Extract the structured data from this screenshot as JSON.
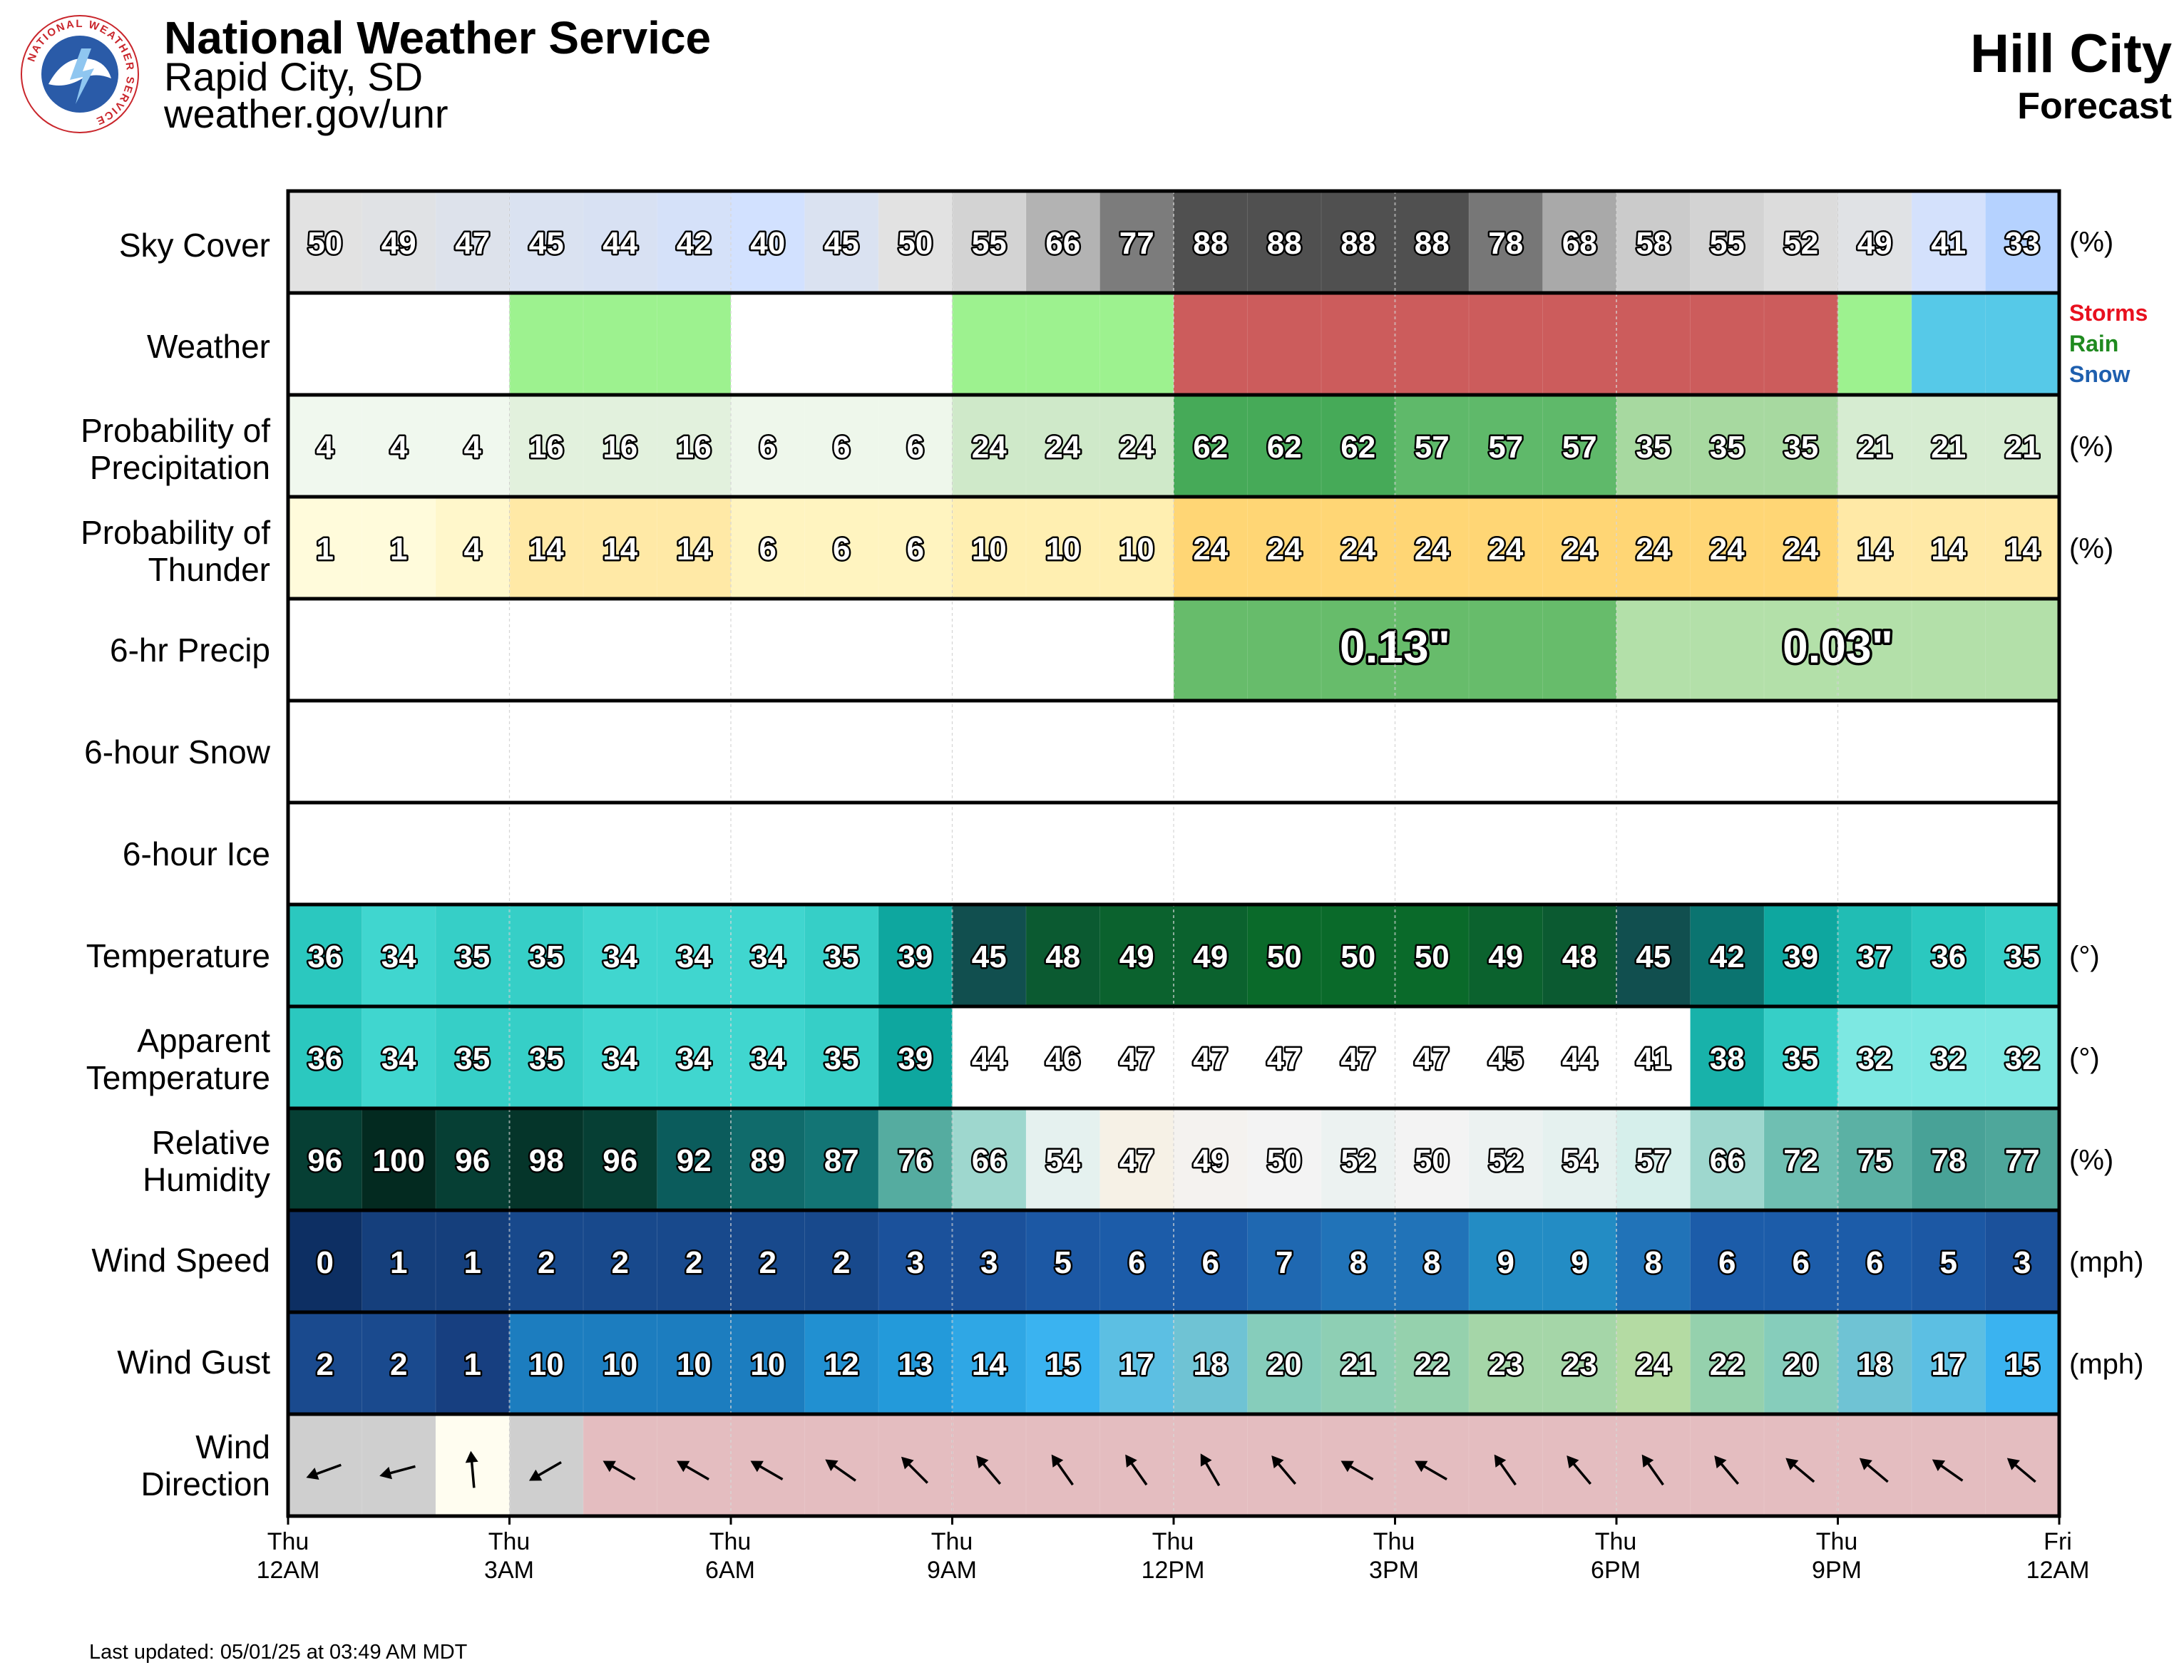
{
  "header": {
    "office": "National Weather Service",
    "city": "Rapid City, SD",
    "url": "weather.gov/unr",
    "location": "Hill City",
    "subtitle": "Forecast",
    "logo_text": "NATIONAL WEATHER SERVICE"
  },
  "footer": {
    "updated": "Last updated: 05/01/25 at 03:49 AM MDT"
  },
  "units": {
    "percent": "(%)",
    "degrees": "(°)",
    "mph": "(mph)"
  },
  "weather_legend": [
    {
      "label": "Storms",
      "color": "#e8101e"
    },
    {
      "label": "Rain",
      "color": "#1f8a1f"
    },
    {
      "label": "Snow",
      "color": "#1e5fae"
    }
  ],
  "x_ticks": [
    {
      "day": "Thu",
      "time": "12AM"
    },
    {
      "day": "Thu",
      "time": "3AM"
    },
    {
      "day": "Thu",
      "time": "6AM"
    },
    {
      "day": "Thu",
      "time": "9AM"
    },
    {
      "day": "Thu",
      "time": "12PM"
    },
    {
      "day": "Thu",
      "time": "3PM"
    },
    {
      "day": "Thu",
      "time": "6PM"
    },
    {
      "day": "Thu",
      "time": "9PM"
    },
    {
      "day": "Fri",
      "time": "12AM"
    }
  ],
  "chart_data": {
    "type": "table",
    "hours": [
      "12AM",
      "1AM",
      "2AM",
      "3AM",
      "4AM",
      "5AM",
      "6AM",
      "7AM",
      "8AM",
      "9AM",
      "10AM",
      "11AM",
      "12PM",
      "1PM",
      "2PM",
      "3PM",
      "4PM",
      "5PM",
      "6PM",
      "7PM",
      "8PM",
      "9PM",
      "10PM",
      "11PM"
    ],
    "rows": {
      "sky_cover": {
        "label": "Sky Cover",
        "unit": "(%)",
        "values": [
          50,
          49,
          47,
          45,
          44,
          42,
          40,
          45,
          50,
          55,
          66,
          77,
          88,
          88,
          88,
          88,
          78,
          68,
          58,
          55,
          52,
          49,
          41,
          33
        ]
      },
      "weather": {
        "label": "Weather",
        "values": [
          "",
          "",
          "",
          "Rain",
          "Rain",
          "Rain",
          "",
          "",
          "",
          "Rain",
          "Rain",
          "Rain",
          "Storms",
          "Storms",
          "Storms",
          "Storms",
          "Storms",
          "Storms",
          "Storms",
          "Storms",
          "Storms",
          "Rain",
          "Snow",
          "Snow"
        ]
      },
      "pop": {
        "label": "Probability of Precipitation",
        "label_lines": [
          "Probability of",
          "Precipitation"
        ],
        "unit": "(%)",
        "values": [
          4,
          4,
          4,
          16,
          16,
          16,
          6,
          6,
          6,
          24,
          24,
          24,
          62,
          62,
          62,
          57,
          57,
          57,
          35,
          35,
          35,
          21,
          21,
          21
        ]
      },
      "thunder": {
        "label": "Probability of Thunder",
        "label_lines": [
          "Probability of",
          "Thunder"
        ],
        "unit": "(%)",
        "values": [
          1,
          1,
          4,
          14,
          14,
          14,
          6,
          6,
          6,
          10,
          10,
          10,
          24,
          24,
          24,
          24,
          24,
          24,
          24,
          24,
          24,
          14,
          14,
          14
        ]
      },
      "precip6": {
        "label": "6-hr Precip",
        "blocks": [
          {
            "start": 12,
            "end": 18,
            "value": "0.13\"",
            "amount": 0.13
          },
          {
            "start": 18,
            "end": 24,
            "value": "0.03\"",
            "amount": 0.03
          }
        ]
      },
      "snow6": {
        "label": "6-hour Snow",
        "blocks": []
      },
      "ice6": {
        "label": "6-hour Ice",
        "blocks": []
      },
      "temperature": {
        "label": "Temperature",
        "unit": "(°)",
        "values": [
          36,
          34,
          35,
          35,
          34,
          34,
          34,
          35,
          39,
          45,
          48,
          49,
          49,
          50,
          50,
          50,
          49,
          48,
          45,
          42,
          39,
          37,
          36,
          35
        ]
      },
      "apparent": {
        "label": "Apparent Temperature",
        "label_lines": [
          "Apparent",
          "Temperature"
        ],
        "unit": "(°)",
        "values": [
          36,
          34,
          35,
          35,
          34,
          34,
          34,
          35,
          39,
          44,
          46,
          47,
          47,
          47,
          47,
          47,
          45,
          44,
          41,
          38,
          35,
          32,
          32,
          32
        ]
      },
      "humidity": {
        "label": "Relative Humidity",
        "label_lines": [
          "Relative",
          "Humidity"
        ],
        "unit": "(%)",
        "values": [
          96,
          100,
          96,
          98,
          96,
          92,
          89,
          87,
          76,
          66,
          54,
          47,
          49,
          50,
          52,
          50,
          52,
          54,
          57,
          66,
          72,
          75,
          78,
          77
        ]
      },
      "wind_speed": {
        "label": "Wind Speed",
        "unit": "(mph)",
        "values": [
          0,
          1,
          1,
          2,
          2,
          2,
          2,
          2,
          3,
          3,
          5,
          6,
          6,
          7,
          8,
          8,
          9,
          9,
          8,
          6,
          6,
          6,
          5,
          3
        ]
      },
      "wind_gust": {
        "label": "Wind Gust",
        "unit": "(mph)",
        "values": [
          2,
          2,
          1,
          10,
          10,
          10,
          10,
          12,
          13,
          14,
          15,
          17,
          18,
          20,
          21,
          22,
          23,
          23,
          24,
          22,
          20,
          18,
          17,
          15
        ]
      },
      "wind_dir": {
        "label": "Wind Direction",
        "label_lines": [
          "Wind",
          "Direction"
        ],
        "unit": "degrees (direction wind blows toward)",
        "values": [
          250,
          255,
          355,
          240,
          300,
          300,
          300,
          305,
          315,
          320,
          325,
          325,
          330,
          320,
          300,
          300,
          325,
          320,
          325,
          320,
          310,
          310,
          305,
          310
        ]
      }
    }
  }
}
